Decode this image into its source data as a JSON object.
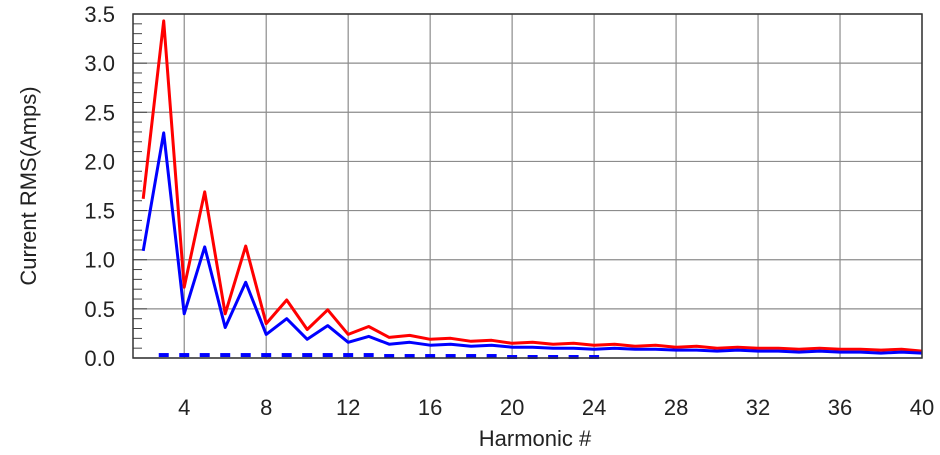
{
  "chart_data": {
    "type": "line",
    "title": "",
    "xlabel": "Harmonic #",
    "ylabel": "Current RMS(Amps)",
    "xlim": [
      1.5,
      40
    ],
    "ylim": [
      0,
      3.5
    ],
    "x_ticks": [
      4,
      8,
      12,
      16,
      20,
      24,
      28,
      32,
      36,
      40
    ],
    "y_ticks": [
      0.0,
      0.5,
      1.0,
      1.5,
      2.0,
      2.5,
      3.0,
      3.5
    ],
    "x_tick_labels": [
      "4",
      "8",
      "12",
      "16",
      "20",
      "24",
      "28",
      "32",
      "36",
      "40"
    ],
    "y_tick_labels": [
      "0.0",
      "0.5",
      "1.0",
      "1.5",
      "2.0",
      "2.5",
      "3.0",
      "3.5"
    ],
    "grid": true,
    "legend": "none",
    "series": [
      {
        "color": "#ff0000",
        "style": "solid",
        "x": [
          2,
          3,
          4,
          5,
          6,
          7,
          8,
          9,
          10,
          11,
          12,
          13,
          14,
          15,
          16,
          17,
          18,
          19,
          20,
          21,
          22,
          23,
          24,
          25,
          26,
          27,
          28,
          29,
          30,
          31,
          32,
          33,
          34,
          35,
          36,
          37,
          38,
          39,
          40
        ],
        "values": [
          1.62,
          3.43,
          0.72,
          1.69,
          0.45,
          1.14,
          0.35,
          0.59,
          0.29,
          0.49,
          0.24,
          0.32,
          0.21,
          0.23,
          0.19,
          0.2,
          0.17,
          0.18,
          0.15,
          0.16,
          0.14,
          0.15,
          0.13,
          0.14,
          0.12,
          0.13,
          0.11,
          0.12,
          0.1,
          0.11,
          0.1,
          0.1,
          0.09,
          0.1,
          0.09,
          0.09,
          0.08,
          0.09,
          0.07
        ]
      },
      {
        "color": "#0000ff",
        "style": "solid",
        "x": [
          2,
          3,
          4,
          5,
          6,
          7,
          8,
          9,
          10,
          11,
          12,
          13,
          14,
          15,
          16,
          17,
          18,
          19,
          20,
          21,
          22,
          23,
          24,
          25,
          26,
          27,
          28,
          29,
          30,
          31,
          32,
          33,
          34,
          35,
          36,
          37,
          38,
          39,
          40
        ],
        "values": [
          1.09,
          2.29,
          0.45,
          1.13,
          0.31,
          0.77,
          0.24,
          0.4,
          0.19,
          0.33,
          0.16,
          0.22,
          0.14,
          0.16,
          0.13,
          0.14,
          0.12,
          0.13,
          0.11,
          0.11,
          0.1,
          0.1,
          0.09,
          0.1,
          0.09,
          0.09,
          0.08,
          0.08,
          0.07,
          0.08,
          0.07,
          0.07,
          0.06,
          0.07,
          0.06,
          0.06,
          0.05,
          0.06,
          0.05
        ]
      },
      {
        "color": "#0000ff",
        "style": "dashed",
        "x": [
          3,
          4,
          5,
          6,
          7,
          8,
          9,
          10,
          11,
          12,
          13,
          14,
          15,
          16,
          17,
          18,
          19,
          20,
          21,
          22,
          23,
          24
        ],
        "values": [
          0.03,
          0.03,
          0.03,
          0.03,
          0.03,
          0.03,
          0.03,
          0.03,
          0.03,
          0.03,
          0.03,
          0.02,
          0.02,
          0.02,
          0.02,
          0.02,
          0.02,
          0.01,
          0.01,
          0.01,
          0.01,
          0.01
        ]
      }
    ]
  }
}
